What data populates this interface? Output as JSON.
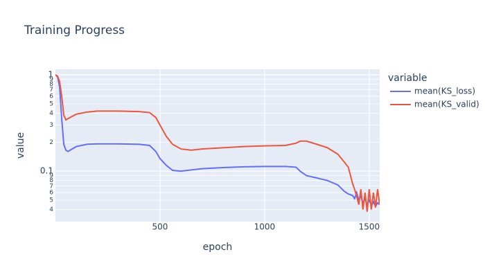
{
  "chart_data": {
    "type": "line",
    "title": "Training Progress",
    "xlabel": "epoch",
    "ylabel": "value",
    "legend_title": "variable",
    "legend": "right",
    "log_y": true,
    "grid": true,
    "x": [
      0,
      10,
      20,
      30,
      40,
      50,
      60,
      80,
      100,
      150,
      200,
      300,
      400,
      450,
      480,
      500,
      530,
      560,
      600,
      650,
      700,
      800,
      900,
      1000,
      1100,
      1150,
      1170,
      1200,
      1250,
      1300,
      1350,
      1380,
      1400,
      1420,
      1430,
      1440,
      1450,
      1460,
      1470,
      1480,
      1490,
      1500,
      1510,
      1520,
      1530,
      1540,
      1550
    ],
    "series": [
      {
        "name": "mean(KS_loss)",
        "color": "#636efa",
        "values": [
          1.0,
          0.95,
          0.75,
          0.35,
          0.19,
          0.165,
          0.16,
          0.17,
          0.18,
          0.19,
          0.192,
          0.192,
          0.19,
          0.185,
          0.16,
          0.135,
          0.115,
          0.102,
          0.1,
          0.103,
          0.106,
          0.109,
          0.111,
          0.112,
          0.112,
          0.11,
          0.1,
          0.09,
          0.085,
          0.08,
          0.072,
          0.062,
          0.058,
          0.056,
          0.052,
          0.06,
          0.05,
          0.055,
          0.047,
          0.052,
          0.045,
          0.05,
          0.044,
          0.048,
          0.043,
          0.047,
          0.045
        ]
      },
      {
        "name": "mean(KS_valid)",
        "color": "#EF553B",
        "values": [
          1.0,
          0.97,
          0.85,
          0.6,
          0.38,
          0.34,
          0.35,
          0.37,
          0.39,
          0.41,
          0.42,
          0.42,
          0.415,
          0.405,
          0.36,
          0.3,
          0.23,
          0.19,
          0.17,
          0.165,
          0.17,
          0.175,
          0.18,
          0.183,
          0.185,
          0.195,
          0.205,
          0.205,
          0.19,
          0.175,
          0.15,
          0.125,
          0.11,
          0.075,
          0.065,
          0.055,
          0.045,
          0.065,
          0.04,
          0.06,
          0.038,
          0.065,
          0.04,
          0.06,
          0.042,
          0.065,
          0.045
        ]
      }
    ],
    "xlim": [
      0,
      1550
    ],
    "xticks": [
      500,
      1000,
      1500
    ],
    "ylim": [
      0.03,
      1.14
    ],
    "yticks": [
      1,
      {
        "value": 0.9,
        "label": "9"
      },
      {
        "value": 0.8,
        "label": "8"
      },
      {
        "value": 0.7,
        "label": "7"
      },
      {
        "value": 0.6,
        "label": "6"
      },
      {
        "value": 0.5,
        "label": "5"
      },
      {
        "value": 0.4,
        "label": "4"
      },
      {
        "value": 0.3,
        "label": "3"
      },
      {
        "value": 0.2,
        "label": "2"
      },
      0.1,
      {
        "value": 0.09,
        "label": "9"
      },
      {
        "value": 0.08,
        "label": "8"
      },
      {
        "value": 0.07,
        "label": "7"
      },
      {
        "value": 0.06,
        "label": "6"
      },
      {
        "value": 0.05,
        "label": "5"
      },
      {
        "value": 0.04,
        "label": "4"
      }
    ]
  }
}
